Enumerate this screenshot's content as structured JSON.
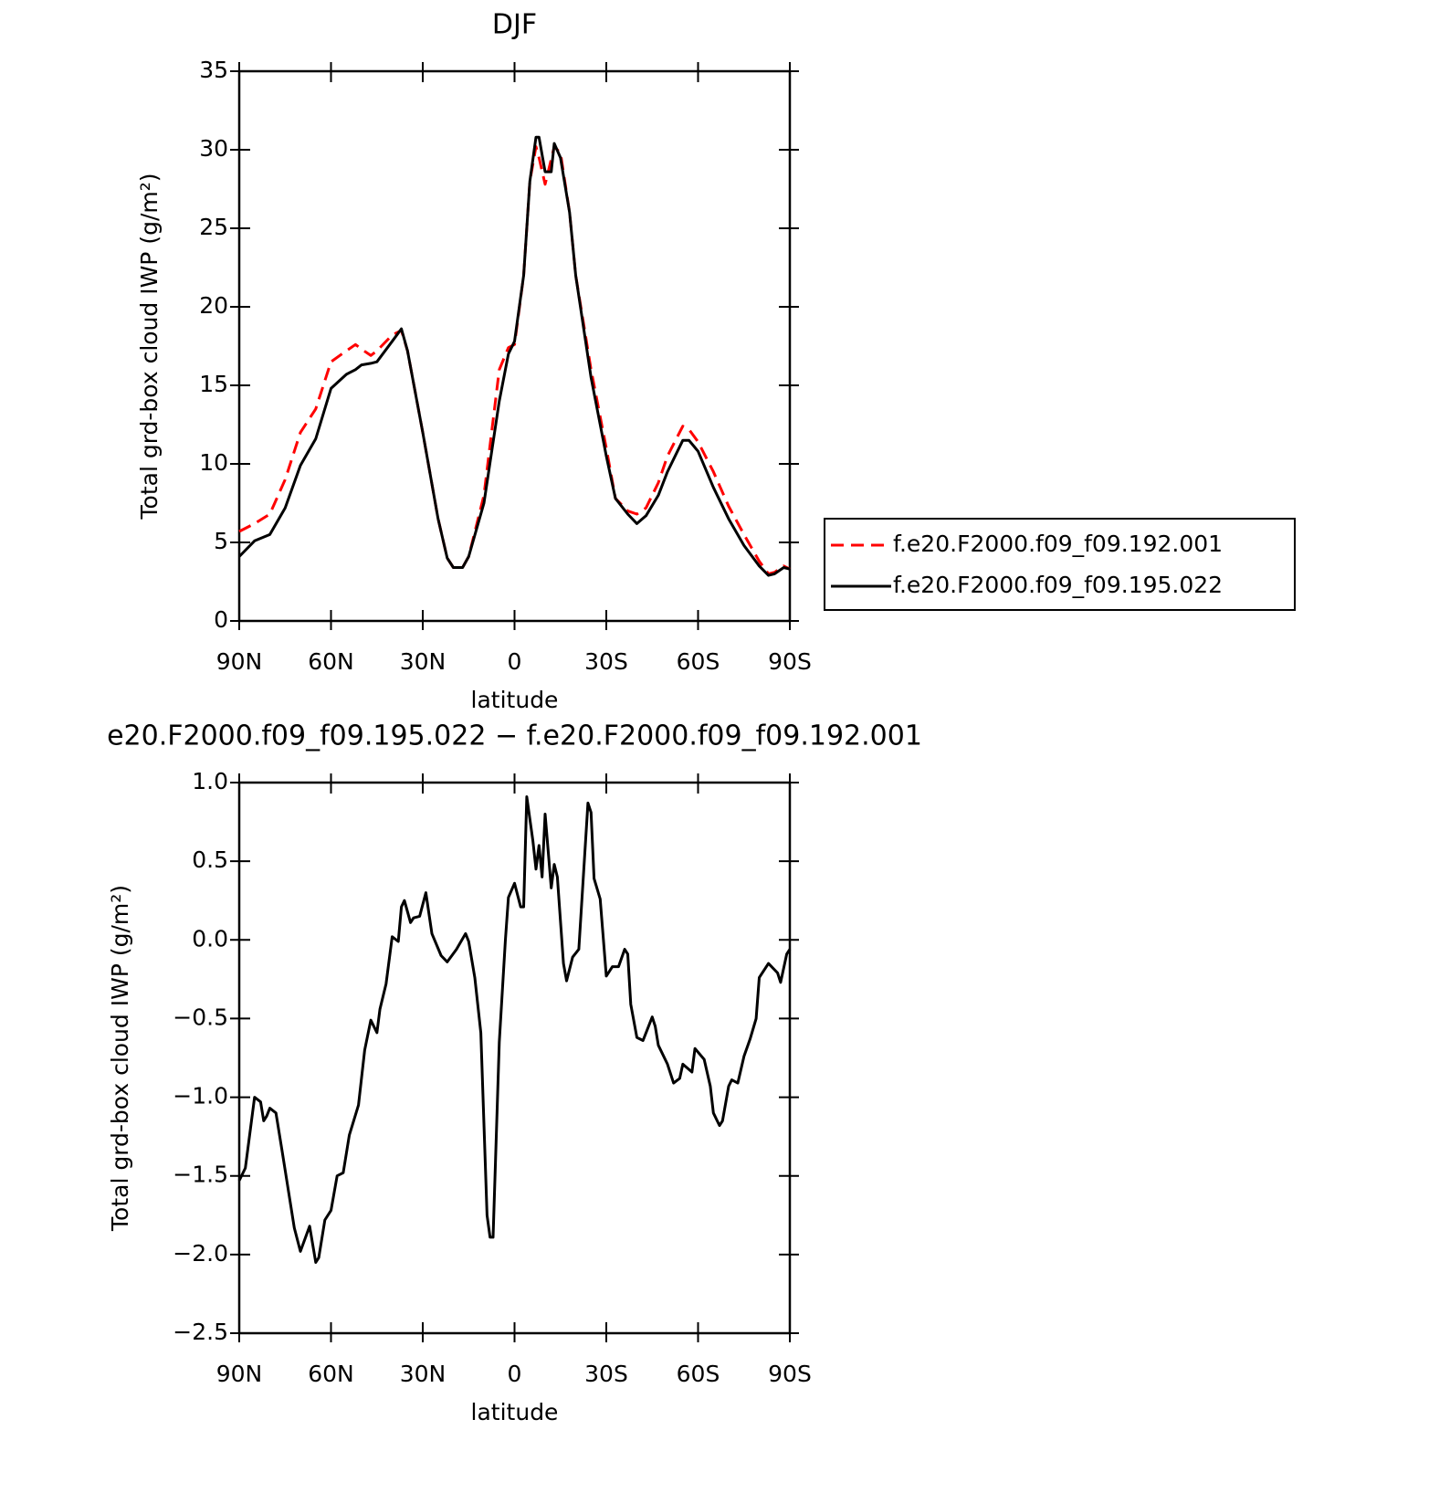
{
  "chart_data": [
    {
      "type": "line",
      "title": "DJF",
      "xlabel": "latitude",
      "ylabel": "Total grd-box cloud IWP (g/m²)",
      "x": [
        90,
        85,
        80,
        75,
        70,
        65,
        60,
        55,
        52,
        50,
        47,
        45,
        40,
        37,
        35,
        30,
        25,
        22,
        20,
        17,
        15,
        10,
        5,
        2,
        0,
        -3,
        -5,
        -7,
        -8,
        -10,
        -12,
        -13,
        -15,
        -18,
        -20,
        -25,
        -30,
        -33,
        -37,
        -40,
        -43,
        -47,
        -50,
        -55,
        -57,
        -60,
        -65,
        -70,
        -75,
        -80,
        -83,
        -85,
        -88,
        -90
      ],
      "series": [
        {
          "name": "f.e20.F2000.f09_f09.192.001",
          "color": "#ff0000",
          "line_style": "dashed",
          "values": [
            5.7,
            6.2,
            6.8,
            9.0,
            12.0,
            13.5,
            16.5,
            17.2,
            17.6,
            17.3,
            16.9,
            17.2,
            18.2,
            18.5,
            17.2,
            12,
            6.5,
            4.0,
            3.4,
            3.4,
            4.1,
            8,
            16,
            17.4,
            17.6,
            22,
            28,
            30.2,
            29.5,
            27.8,
            29.4,
            30.2,
            29.8,
            26,
            22,
            16,
            11,
            7.8,
            7.0,
            6.8,
            7.2,
            8.8,
            10.5,
            12.4,
            12.2,
            11.4,
            9.5,
            7.3,
            5.5,
            3.8,
            3.0,
            3.1,
            3.5,
            3.3
          ]
        },
        {
          "name": "f.e20.F2000.f09_f09.195.022",
          "color": "#000000",
          "line_style": "solid",
          "values": [
            4.1,
            5.1,
            5.5,
            7.2,
            9.9,
            11.6,
            14.8,
            15.7,
            16.0,
            16.3,
            16.4,
            16.5,
            17.8,
            18.6,
            17.2,
            12,
            6.5,
            4.0,
            3.4,
            3.4,
            4.1,
            7.5,
            14,
            17,
            17.8,
            22,
            28,
            30.8,
            30.8,
            28.6,
            28.6,
            30.4,
            29.5,
            26,
            22,
            15.5,
            10.5,
            7.8,
            6.8,
            6.2,
            6.7,
            8,
            9.5,
            11.5,
            11.5,
            10.8,
            8.5,
            6.5,
            4.8,
            3.5,
            2.9,
            3.0,
            3.4,
            3.3
          ]
        }
      ],
      "xlim": [
        90,
        -90
      ],
      "xticks": [
        {
          "value": 90,
          "label": "90N"
        },
        {
          "value": 60,
          "label": "60N"
        },
        {
          "value": 30,
          "label": "30N"
        },
        0,
        {
          "value": -30,
          "label": "30S"
        },
        {
          "value": -60,
          "label": "60S"
        },
        {
          "value": -90,
          "label": "90S"
        }
      ],
      "ylim": [
        0,
        35
      ],
      "yticks": [
        0,
        5,
        10,
        15,
        20,
        25,
        30,
        35
      ],
      "legend": "right"
    },
    {
      "type": "line",
      "title": "e20.F2000.f09_f09.195.022 − f.e20.F2000.f09_f09.192.001",
      "xlabel": "latitude",
      "ylabel": "Total grd-box cloud IWP (g/m²)",
      "x": [
        90,
        88,
        85,
        83,
        82,
        81,
        80,
        78,
        76,
        72,
        70,
        67,
        65,
        64,
        62,
        60,
        58,
        56,
        54,
        51,
        49,
        47,
        45,
        44,
        42,
        40,
        38,
        37,
        36,
        34,
        33,
        31,
        29,
        27,
        24,
        22,
        19,
        16,
        15,
        13,
        11,
        9,
        8,
        7,
        5,
        3,
        2,
        0,
        -2,
        -3,
        -4,
        -6,
        -7,
        -8,
        -9,
        -10,
        -12,
        -13,
        -14,
        -16,
        -17,
        -19,
        -21,
        -24,
        -25,
        -26,
        -28,
        -30,
        -32,
        -34,
        -36,
        -37,
        -38,
        -40,
        -42,
        -45,
        -46,
        -47,
        -50,
        -52,
        -54,
        -55,
        -58,
        -59,
        -62,
        -64,
        -65,
        -67,
        -68,
        -70,
        -71,
        -73,
        -75,
        -77,
        -79,
        -80,
        -83,
        -86,
        -87,
        -89,
        -90
      ],
      "values": [
        -1.53,
        -1.45,
        -1.0,
        -1.03,
        -1.15,
        -1.12,
        -1.07,
        -1.1,
        -1.34,
        -1.83,
        -1.98,
        -1.82,
        -2.05,
        -2.02,
        -1.78,
        -1.72,
        -1.5,
        -1.48,
        -1.24,
        -1.05,
        -0.7,
        -0.51,
        -0.59,
        -0.44,
        -0.28,
        0.02,
        -0.01,
        0.21,
        0.25,
        0.11,
        0.14,
        0.15,
        0.3,
        0.04,
        -0.1,
        -0.14,
        -0.06,
        0.04,
        -0.01,
        -0.24,
        -0.59,
        -1.75,
        -1.89,
        -1.89,
        -0.65,
        0,
        0.27,
        0.36,
        0.21,
        0.21,
        0.91,
        0.63,
        0.45,
        0.6,
        0.4,
        0.8,
        0.33,
        0.48,
        0.4,
        -0.15,
        -0.26,
        -0.11,
        -0.06,
        0.87,
        0.81,
        0.39,
        0.26,
        -0.23,
        -0.17,
        -0.17,
        -0.06,
        -0.09,
        -0.41,
        -0.62,
        -0.64,
        -0.49,
        -0.55,
        -0.67,
        -0.79,
        -0.91,
        -0.88,
        -0.79,
        -0.84,
        -0.69,
        -0.76,
        -0.93,
        -1.1,
        -1.18,
        -1.15,
        -0.93,
        -0.89,
        -0.91,
        -0.74,
        -0.63,
        -0.5,
        -0.24,
        -0.15,
        -0.21,
        -0.27,
        -0.09,
        -0.06
      ],
      "color": "#000000",
      "xlim": [
        90,
        -90
      ],
      "xticks": [
        {
          "value": 90,
          "label": "90N"
        },
        {
          "value": 60,
          "label": "60N"
        },
        {
          "value": 30,
          "label": "30N"
        },
        0,
        {
          "value": -30,
          "label": "30S"
        },
        {
          "value": -60,
          "label": "60S"
        },
        {
          "value": -90,
          "label": "90S"
        }
      ],
      "ylim": [
        -2.5,
        1
      ],
      "yticks": [
        {
          "value": -2.5,
          "label": "−2.5"
        },
        {
          "value": -2,
          "label": "−2.0"
        },
        {
          "value": -1.5,
          "label": "−1.5"
        },
        {
          "value": -1,
          "label": "−1.0"
        },
        {
          "value": -0.5,
          "label": "−0.5"
        },
        {
          "value": 0,
          "label": "0.0"
        },
        {
          "value": 0.5,
          "label": "0.5"
        },
        {
          "value": 1,
          "label": "1.0"
        }
      ]
    }
  ]
}
